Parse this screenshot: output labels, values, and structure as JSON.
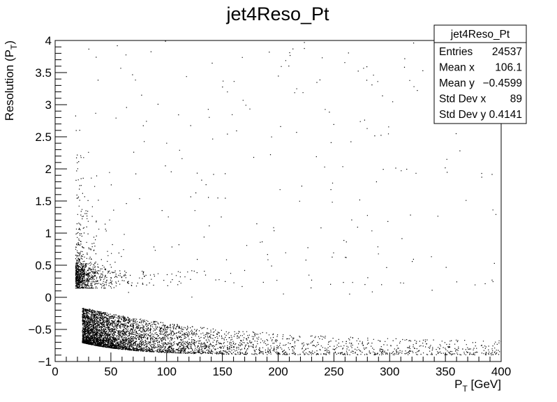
{
  "chart_data": {
    "type": "scatter",
    "title": "jet4Reso_Pt",
    "xlabel": "P_T [GeV]",
    "xlabel_main": "P",
    "xlabel_sub": "T",
    "xlabel_rest": " [GeV]",
    "ylabel": "Resolution (P_T)",
    "ylabel_main": "Resolution (P",
    "ylabel_sub": "T",
    "ylabel_rest": ")",
    "xlim": [
      0,
      400
    ],
    "ylim": [
      -1,
      4
    ],
    "xticks": [
      0,
      50,
      100,
      150,
      200,
      250,
      300,
      350,
      400
    ],
    "xtick_labels": [
      "0",
      "50",
      "100",
      "150",
      "200",
      "250",
      "300",
      "350",
      "400"
    ],
    "yticks": [
      -1,
      -0.5,
      0,
      0.5,
      1,
      1.5,
      2,
      2.5,
      3,
      3.5,
      4
    ],
    "ytick_labels": [
      "−1",
      "−0.5",
      "0",
      "0.5",
      "1",
      "1.5",
      "2",
      "2.5",
      "3",
      "3.5",
      "4"
    ],
    "grid": false,
    "stats_box": {
      "title": "jet4Reso_Pt",
      "placement": "top-right",
      "rows": [
        {
          "label": "Entries",
          "value": "24537"
        },
        {
          "label": "Mean x",
          "value": "106.1"
        },
        {
          "label": "Mean y",
          "value": "−0.4599"
        },
        {
          "label": "Std Dev x",
          "value": "89"
        },
        {
          "label": "Std Dev y",
          "value": "0.4141"
        }
      ]
    },
    "distribution": {
      "entries": 24537,
      "mean_x": 106.1,
      "mean_y": -0.4599,
      "std_x": 89,
      "std_y": 0.4141,
      "x_min": 18,
      "main_band_y_upper": -0.15,
      "main_band_y_floor": -0.93,
      "upper_cluster_x_range": [
        18,
        40
      ],
      "upper_cluster_y_center": 0.3,
      "sparse_outlier_region": {
        "x": [
          18,
          400
        ],
        "y": [
          0,
          4
        ]
      }
    }
  }
}
